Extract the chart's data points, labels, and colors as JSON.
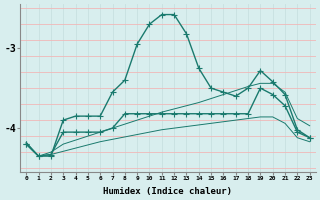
{
  "xlabel": "Humidex (Indice chaleur)",
  "x": [
    0,
    1,
    2,
    3,
    4,
    5,
    6,
    7,
    8,
    9,
    10,
    11,
    12,
    13,
    14,
    15,
    16,
    17,
    18,
    19,
    20,
    21,
    22,
    23
  ],
  "line1": [
    -4.2,
    -4.35,
    -4.35,
    -3.9,
    -3.85,
    -3.85,
    -3.85,
    -3.55,
    -3.4,
    -2.95,
    -2.7,
    -2.58,
    -2.58,
    -2.82,
    -3.25,
    -3.5,
    -3.55,
    -3.6,
    -3.5,
    -3.28,
    -3.42,
    -3.58,
    -4.02,
    -4.12
  ],
  "line2": [
    -4.2,
    -4.35,
    -4.33,
    -4.05,
    -4.05,
    -4.05,
    -4.05,
    -4.0,
    -3.82,
    -3.82,
    -3.82,
    -3.82,
    -3.82,
    -3.82,
    -3.82,
    -3.82,
    -3.82,
    -3.82,
    -3.82,
    -3.5,
    -3.58,
    -3.72,
    -4.05,
    -4.12
  ],
  "line3": [
    -4.18,
    -4.35,
    -4.3,
    -4.2,
    -4.15,
    -4.1,
    -4.05,
    -4.0,
    -3.95,
    -3.9,
    -3.85,
    -3.8,
    -3.76,
    -3.72,
    -3.68,
    -3.63,
    -3.58,
    -3.53,
    -3.48,
    -3.44,
    -3.44,
    -3.55,
    -3.88,
    -3.97
  ],
  "line4": [
    -4.18,
    -4.35,
    -4.33,
    -4.29,
    -4.25,
    -4.21,
    -4.17,
    -4.14,
    -4.11,
    -4.08,
    -4.05,
    -4.02,
    -4.0,
    -3.98,
    -3.96,
    -3.94,
    -3.92,
    -3.9,
    -3.88,
    -3.86,
    -3.86,
    -3.94,
    -4.12,
    -4.17
  ],
  "ylim": [
    -4.55,
    -2.45
  ],
  "yticks": [
    -4,
    -3
  ],
  "ytick_labels": [
    "-4",
    "-3"
  ],
  "background_color": "#d8eeee",
  "grid_color_h": "#f0b8b8",
  "grid_color_v": "#c8e0e0",
  "line_color": "#1a7a6e",
  "marker": "+",
  "markersize": 4,
  "linewidth1": 1.0,
  "linewidth2": 1.0,
  "linewidth3": 0.7,
  "linewidth4": 0.7
}
